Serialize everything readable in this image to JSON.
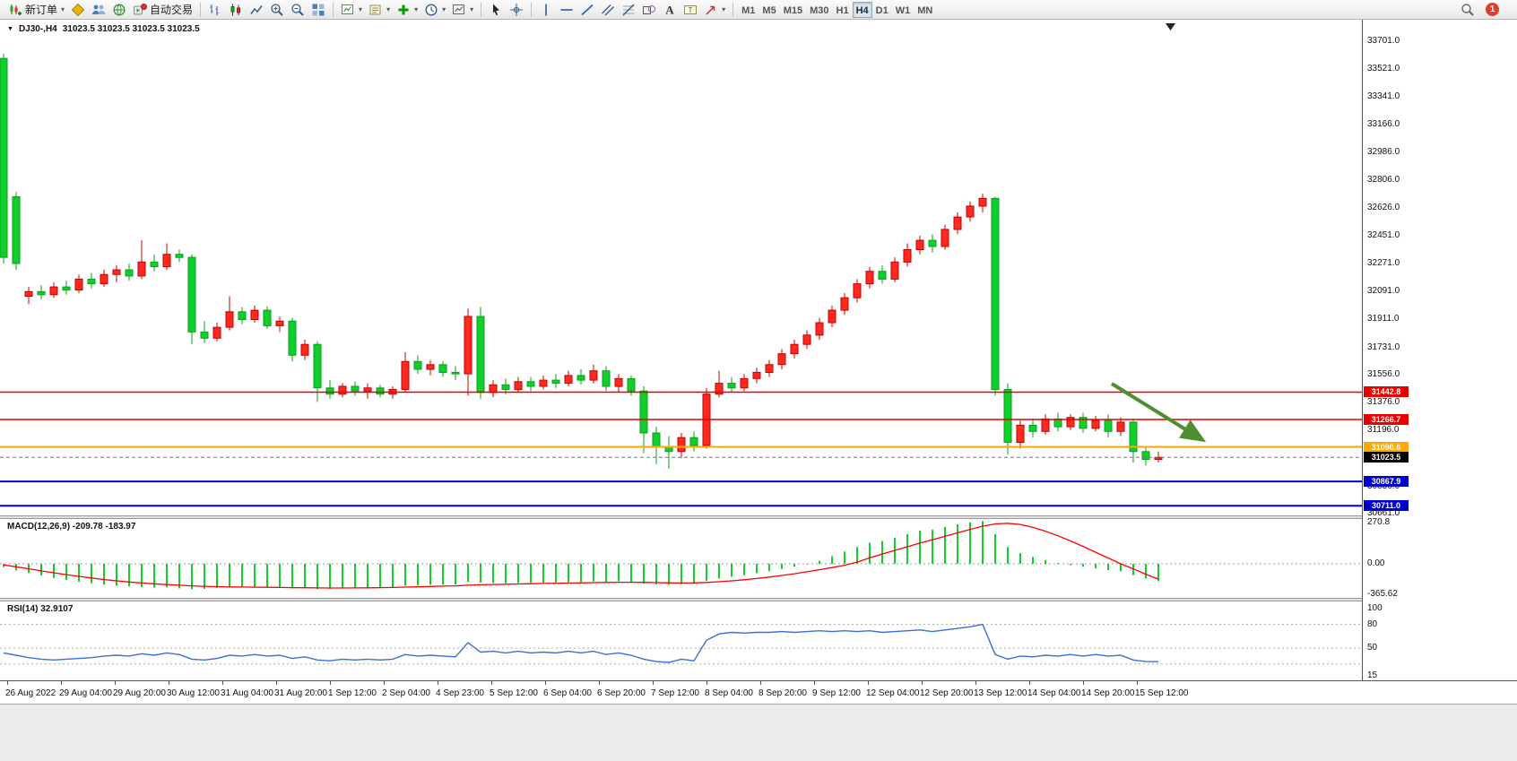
{
  "toolbar": {
    "new_order": "新订单",
    "auto_trading": "自动交易",
    "timeframes": [
      "M1",
      "M5",
      "M15",
      "M30",
      "H1",
      "H4",
      "D1",
      "W1",
      "MN"
    ],
    "active_timeframe": "H4",
    "notification_count": "1"
  },
  "chart": {
    "title": "DJ30-,H4",
    "quote_line": "31023.5 31023.5 31023.5 31023.5",
    "price_axis_labels": [
      33701.0,
      33521.0,
      33341.0,
      33166.0,
      32986.0,
      32806.0,
      32626.0,
      32451.0,
      32271.0,
      32091.0,
      31911.0,
      31731.0,
      31556.0,
      31376.0,
      31196.0,
      31016.0,
      30836.0,
      30661.0
    ],
    "levels": [
      {
        "price": 31442.8,
        "color": "#e80000",
        "type": "line"
      },
      {
        "price": 31266.7,
        "color": "#e80000",
        "type": "line"
      },
      {
        "price": 31090.6,
        "color": "#ffa800",
        "type": "line"
      },
      {
        "price": 31023.5,
        "color": "#000000",
        "type": "current"
      },
      {
        "price": 30867.9,
        "color": "#0000cc",
        "type": "line"
      },
      {
        "price": 30711.0,
        "color": "#0000cc",
        "type": "line"
      }
    ],
    "colors": {
      "up": "#ff2a1f",
      "up_border": "#c40000",
      "down": "#10cf2a",
      "down_border": "#079а1c",
      "arrow": "#4e8f2f",
      "macd_hist": "#10cf2a",
      "macd_signal": "#ff0000",
      "rsi_line": "#3a6fd8"
    }
  },
  "chart_data": {
    "type": "candlestick",
    "symbol": "DJ30-",
    "timeframe": "H4",
    "candles": [
      [
        33590,
        33620,
        32270,
        32310
      ],
      [
        32700,
        32730,
        32230,
        32270
      ],
      [
        32060,
        32120,
        32010,
        32090
      ],
      [
        32090,
        32130,
        32040,
        32070
      ],
      [
        32070,
        32150,
        32050,
        32120
      ],
      [
        32120,
        32160,
        32070,
        32100
      ],
      [
        32100,
        32200,
        32080,
        32170
      ],
      [
        32170,
        32210,
        32110,
        32140
      ],
      [
        32140,
        32230,
        32120,
        32200
      ],
      [
        32200,
        32260,
        32150,
        32230
      ],
      [
        32230,
        32270,
        32160,
        32190
      ],
      [
        32190,
        32420,
        32170,
        32280
      ],
      [
        32280,
        32330,
        32220,
        32250
      ],
      [
        32250,
        32400,
        32230,
        32330
      ],
      [
        32330,
        32360,
        32280,
        32310
      ],
      [
        32310,
        32330,
        31750,
        31830
      ],
      [
        31830,
        31900,
        31760,
        31790
      ],
      [
        31790,
        31890,
        31770,
        31860
      ],
      [
        31860,
        32060,
        31840,
        31960
      ],
      [
        31960,
        31990,
        31880,
        31910
      ],
      [
        31910,
        32000,
        31890,
        31970
      ],
      [
        31970,
        31995,
        31850,
        31870
      ],
      [
        31870,
        31930,
        31830,
        31900
      ],
      [
        31900,
        31920,
        31640,
        31680
      ],
      [
        31680,
        31780,
        31650,
        31750
      ],
      [
        31750,
        31770,
        31380,
        31470
      ],
      [
        31470,
        31520,
        31400,
        31430
      ],
      [
        31430,
        31500,
        31410,
        31480
      ],
      [
        31480,
        31510,
        31420,
        31450
      ],
      [
        31450,
        31500,
        31400,
        31470
      ],
      [
        31470,
        31490,
        31410,
        31430
      ],
      [
        31430,
        31480,
        31400,
        31460
      ],
      [
        31460,
        31700,
        31440,
        31640
      ],
      [
        31640,
        31680,
        31560,
        31590
      ],
      [
        31590,
        31650,
        31550,
        31620
      ],
      [
        31620,
        31640,
        31540,
        31570
      ],
      [
        31570,
        31610,
        31520,
        31560
      ],
      [
        31560,
        31980,
        31420,
        31930
      ],
      [
        31930,
        31990,
        31400,
        31440
      ],
      [
        31440,
        31520,
        31410,
        31490
      ],
      [
        31490,
        31530,
        31430,
        31460
      ],
      [
        31460,
        31540,
        31440,
        31510
      ],
      [
        31510,
        31540,
        31450,
        31480
      ],
      [
        31480,
        31550,
        31460,
        31520
      ],
      [
        31520,
        31560,
        31470,
        31500
      ],
      [
        31500,
        31580,
        31480,
        31550
      ],
      [
        31550,
        31590,
        31490,
        31520
      ],
      [
        31520,
        31620,
        31500,
        31580
      ],
      [
        31580,
        31610,
        31450,
        31480
      ],
      [
        31480,
        31560,
        31440,
        31530
      ],
      [
        31530,
        31550,
        31420,
        31450
      ],
      [
        31450,
        31480,
        31050,
        31180
      ],
      [
        31180,
        31220,
        30980,
        31090
      ],
      [
        31090,
        31160,
        30950,
        31060
      ],
      [
        31060,
        31180,
        31020,
        31150
      ],
      [
        31150,
        31190,
        31060,
        31100
      ],
      [
        31100,
        31470,
        31080,
        31430
      ],
      [
        31430,
        31580,
        31410,
        31500
      ],
      [
        31500,
        31540,
        31440,
        31470
      ],
      [
        31470,
        31560,
        31450,
        31530
      ],
      [
        31530,
        31600,
        31500,
        31570
      ],
      [
        31570,
        31650,
        31540,
        31620
      ],
      [
        31620,
        31720,
        31590,
        31690
      ],
      [
        31690,
        31780,
        31660,
        31750
      ],
      [
        31750,
        31840,
        31720,
        31810
      ],
      [
        31810,
        31920,
        31780,
        31890
      ],
      [
        31890,
        32000,
        31860,
        31970
      ],
      [
        31970,
        32080,
        31940,
        32050
      ],
      [
        32050,
        32170,
        32020,
        32140
      ],
      [
        32140,
        32250,
        32110,
        32220
      ],
      [
        32220,
        32260,
        32140,
        32170
      ],
      [
        32170,
        32310,
        32150,
        32280
      ],
      [
        32280,
        32400,
        32250,
        32360
      ],
      [
        32360,
        32450,
        32330,
        32420
      ],
      [
        32420,
        32460,
        32340,
        32380
      ],
      [
        32380,
        32520,
        32360,
        32490
      ],
      [
        32490,
        32600,
        32460,
        32570
      ],
      [
        32570,
        32670,
        32540,
        32640
      ],
      [
        32640,
        32720,
        32600,
        32690
      ],
      [
        32690,
        32700,
        31420,
        31460
      ],
      [
        31460,
        31500,
        31040,
        31120
      ],
      [
        31120,
        31260,
        31080,
        31230
      ],
      [
        31230,
        31270,
        31150,
        31190
      ],
      [
        31190,
        31300,
        31170,
        31270
      ],
      [
        31270,
        31310,
        31190,
        31220
      ],
      [
        31220,
        31300,
        31200,
        31280
      ],
      [
        31280,
        31310,
        31180,
        31210
      ],
      [
        31210,
        31290,
        31190,
        31260
      ],
      [
        31260,
        31300,
        31150,
        31190
      ],
      [
        31190,
        31280,
        31160,
        31250
      ],
      [
        31250,
        31270,
        30990,
        31060
      ],
      [
        31060,
        31090,
        30970,
        31010
      ],
      [
        31010,
        31060,
        30990,
        31023.5
      ]
    ],
    "time_labels": [
      "26 Aug 2022",
      "29 Aug 04:00",
      "29 Aug 20:00",
      "30 Aug 12:00",
      "31 Aug 04:00",
      "31 Aug 20:00",
      "1 Sep 12:00",
      "2 Sep 04:00",
      "4 Sep 23:00",
      "5 Sep 12:00",
      "6 Sep 04:00",
      "6 Sep 20:00",
      "7 Sep 12:00",
      "8 Sep 04:00",
      "8 Sep 20:00",
      "9 Sep 12:00",
      "12 Sep 04:00",
      "12 Sep 20:00",
      "13 Sep 12:00",
      "14 Sep 04:00",
      "14 Sep 20:00",
      "15 Sep 12:00"
    ],
    "macd": {
      "label": "MACD(12,26,9) -209.78 -183.97",
      "value": -209.78,
      "signal_value": -183.97,
      "axis": [
        "270.8",
        "0.00",
        "-365.62"
      ],
      "hist": [
        -40,
        -80,
        -110,
        -140,
        -170,
        -195,
        -215,
        -235,
        -250,
        -262,
        -272,
        -280,
        -285,
        -282,
        -295,
        -305,
        -300,
        -290,
        -285,
        -282,
        -285,
        -283,
        -290,
        -295,
        -292,
        -305,
        -300,
        -292,
        -288,
        -285,
        -282,
        -278,
        -262,
        -258,
        -252,
        -250,
        -248,
        -215,
        -225,
        -230,
        -232,
        -230,
        -228,
        -226,
        -224,
        -220,
        -218,
        -212,
        -215,
        -210,
        -215,
        -235,
        -248,
        -252,
        -245,
        -240,
        -205,
        -175,
        -155,
        -135,
        -112,
        -88,
        -62,
        -35,
        -8,
        20,
        50,
        80,
        110,
        138,
        150,
        170,
        195,
        218,
        225,
        242,
        260,
        272,
        280,
        195,
        110,
        70,
        45,
        25,
        5,
        -15,
        -35,
        -55,
        -75,
        -90,
        -135,
        -175,
        -209.78
      ],
      "signal": [
        -15,
        -35,
        -60,
        -85,
        -108,
        -130,
        -150,
        -170,
        -188,
        -204,
        -218,
        -230,
        -240,
        -249,
        -257,
        -264,
        -270,
        -274,
        -277,
        -279,
        -281,
        -282,
        -284,
        -286,
        -287,
        -289,
        -290,
        -290,
        -289,
        -288,
        -286,
        -284,
        -280,
        -276,
        -272,
        -268,
        -264,
        -257,
        -252,
        -248,
        -245,
        -242,
        -239,
        -236,
        -234,
        -231,
        -229,
        -226,
        -224,
        -222,
        -221,
        -223,
        -226,
        -229,
        -230,
        -229,
        -224,
        -215,
        -204,
        -191,
        -176,
        -159,
        -140,
        -119,
        -96,
        -71,
        -45,
        -17,
        11,
        39,
        64,
        88,
        112,
        136,
        158,
        180,
        203,
        226,
        247,
        262,
        266,
        258,
        240,
        214,
        184,
        150,
        114,
        76,
        38,
        0,
        -60,
        -125,
        -183.97
      ]
    },
    "rsi": {
      "label": "RSI(14) 32.9107",
      "value": 32.9107,
      "axis": [
        "100",
        "80",
        "50",
        "15"
      ],
      "levels": [
        80,
        50,
        30
      ],
      "values": [
        44,
        41,
        38,
        36,
        35,
        36,
        37,
        38,
        40,
        41,
        40,
        43,
        41,
        44,
        42,
        36,
        35,
        37,
        41,
        40,
        42,
        40,
        41,
        37,
        39,
        35,
        34,
        36,
        35,
        36,
        35,
        36,
        42,
        40,
        41,
        40,
        39,
        57,
        45,
        46,
        44,
        46,
        44,
        45,
        44,
        46,
        44,
        46,
        42,
        44,
        41,
        36,
        33,
        32,
        36,
        34,
        60,
        68,
        70,
        69,
        70,
        70,
        71,
        70,
        71,
        72,
        71,
        72,
        71,
        72,
        70,
        71,
        72,
        73,
        71,
        73,
        75,
        77,
        80,
        42,
        36,
        40,
        39,
        41,
        40,
        42,
        40,
        42,
        40,
        41,
        35,
        33,
        32.9
      ]
    }
  }
}
